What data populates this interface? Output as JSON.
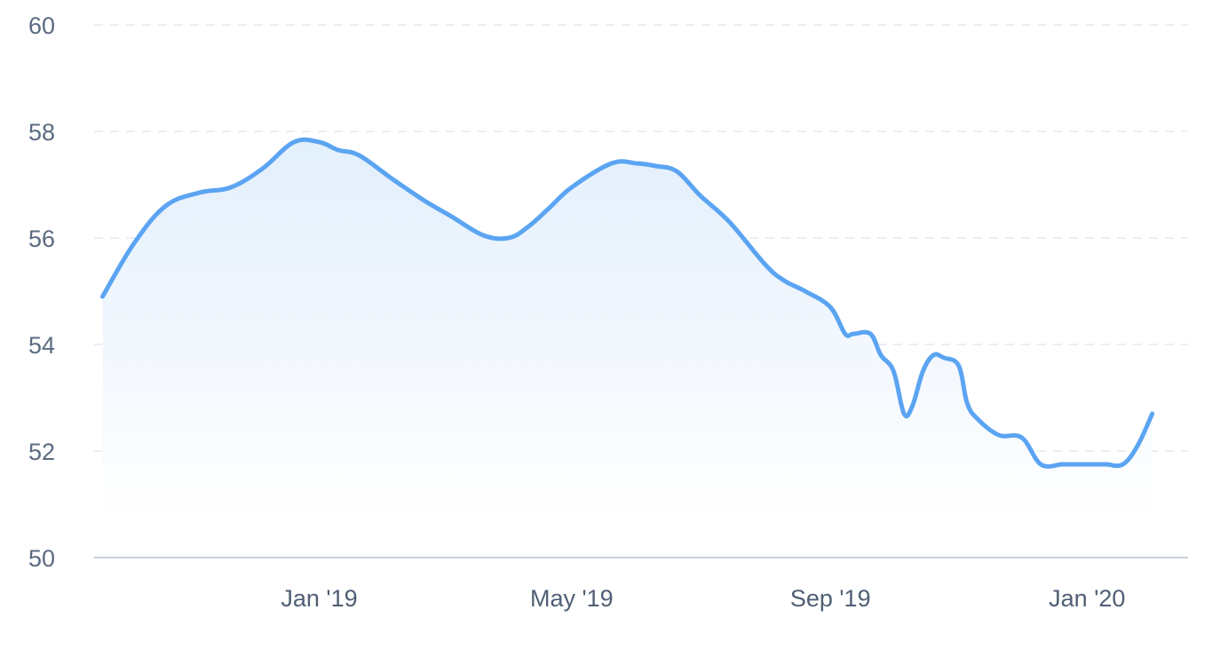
{
  "chart_data": {
    "type": "area",
    "title": "",
    "xlabel": "",
    "ylabel": "",
    "x_tick_labels": [
      "Jan '19",
      "May '19",
      "Sep '19",
      "Jan '20"
    ],
    "x_tick_dates": [
      "2019-01-01",
      "2019-05-01",
      "2019-09-01",
      "2020-01-01"
    ],
    "y_tick_labels": [
      "50",
      "52",
      "54",
      "56",
      "58",
      "60"
    ],
    "ylim": [
      50,
      60
    ],
    "xlim": [
      "2018-09-16",
      "2020-02-18"
    ],
    "grid": true,
    "colors": {
      "line": "#5ba4f2",
      "fill_top": "#e3effc",
      "fill_bottom": "#ffffff"
    },
    "series": [
      {
        "x": [
          "2018-09-20",
          "2018-10-05",
          "2018-10-20",
          "2018-11-05",
          "2018-11-20",
          "2018-12-05",
          "2018-12-20",
          "2019-01-01",
          "2019-01-10",
          "2019-01-20",
          "2019-02-05",
          "2019-02-20",
          "2019-03-05",
          "2019-03-20",
          "2019-04-01",
          "2019-04-10",
          "2019-04-20",
          "2019-05-01",
          "2019-05-20",
          "2019-06-01",
          "2019-06-10",
          "2019-06-20",
          "2019-07-01",
          "2019-07-15",
          "2019-08-01",
          "2019-08-10",
          "2019-08-20",
          "2019-09-01",
          "2019-09-08",
          "2019-09-12",
          "2019-09-20",
          "2019-09-25",
          "2019-10-01",
          "2019-10-06",
          "2019-10-10",
          "2019-10-15",
          "2019-10-20",
          "2019-10-25",
          "2019-11-01",
          "2019-11-05",
          "2019-11-10",
          "2019-11-20",
          "2019-12-01",
          "2019-12-10",
          "2019-12-20",
          "2019-12-24",
          "2020-01-01",
          "2020-01-10",
          "2020-01-18",
          "2020-01-25",
          "2020-02-01"
        ],
        "values": [
          54.9,
          55.9,
          56.6,
          56.85,
          56.95,
          57.3,
          57.8,
          57.8,
          57.65,
          57.55,
          57.1,
          56.7,
          56.4,
          56.05,
          56.0,
          56.2,
          56.55,
          56.95,
          57.4,
          57.4,
          57.35,
          57.25,
          56.8,
          56.3,
          55.5,
          55.2,
          55.0,
          54.7,
          54.2,
          54.2,
          54.2,
          53.8,
          53.5,
          52.7,
          52.85,
          53.5,
          53.8,
          53.75,
          53.6,
          52.9,
          52.6,
          52.3,
          52.25,
          51.75,
          51.75,
          51.75,
          51.75,
          51.75,
          51.75,
          52.1,
          52.7
        ]
      }
    ]
  }
}
